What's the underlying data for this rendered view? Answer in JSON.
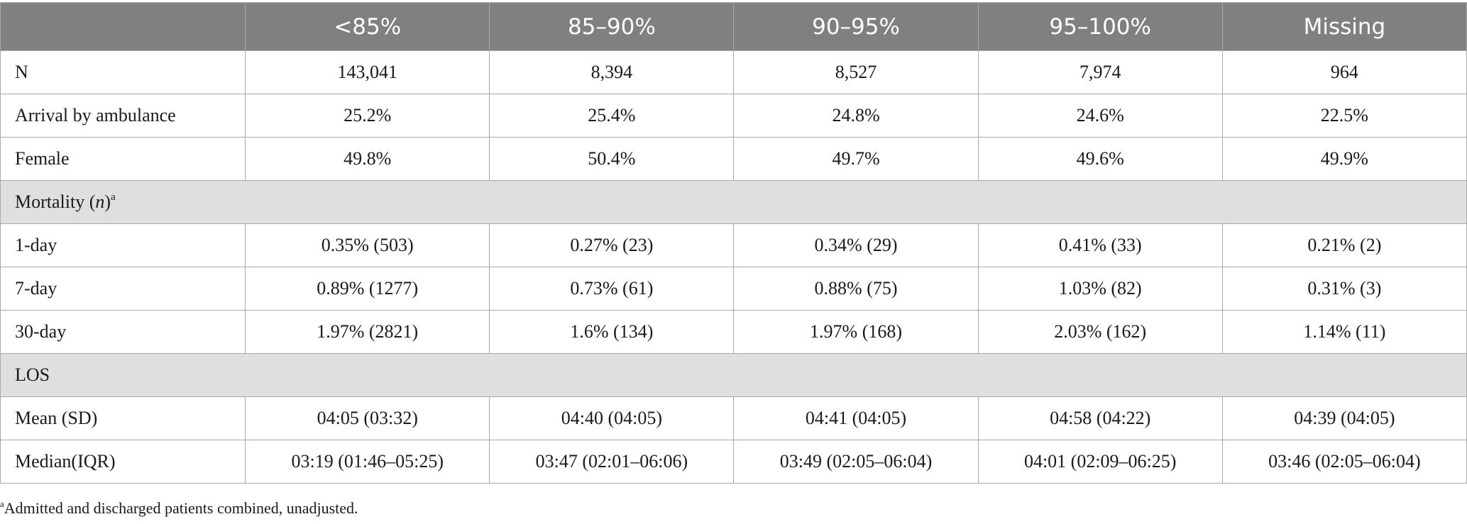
{
  "table": {
    "headers": [
      "",
      "<85%",
      "85–90%",
      "90–95%",
      "95–100%",
      "Missing"
    ],
    "rows_top": [
      {
        "label": "N",
        "values": [
          "143,041",
          "8,394",
          "8,527",
          "7,974",
          "964"
        ]
      },
      {
        "label": "Arrival by ambulance",
        "values": [
          "25.2%",
          "25.4%",
          "24.8%",
          "24.6%",
          "22.5%"
        ]
      },
      {
        "label": "Female",
        "values": [
          "49.8%",
          "50.4%",
          "49.7%",
          "49.6%",
          "49.9%"
        ]
      }
    ],
    "section_mortality": {
      "label_prefix": "Mortality (",
      "label_n": "n",
      "label_suffix": ")",
      "sup": "a"
    },
    "rows_mortality": [
      {
        "label": "1-day",
        "values": [
          "0.35% (503)",
          "0.27% (23)",
          "0.34% (29)",
          "0.41% (33)",
          "0.21% (2)"
        ]
      },
      {
        "label": "7-day",
        "values": [
          "0.89% (1277)",
          "0.73% (61)",
          "0.88% (75)",
          "1.03% (82)",
          "0.31% (3)"
        ]
      },
      {
        "label": "30-day",
        "values": [
          "1.97% (2821)",
          "1.6% (134)",
          "1.97% (168)",
          "2.03% (162)",
          "1.14% (11)"
        ]
      }
    ],
    "section_los": {
      "label": "LOS"
    },
    "rows_los": [
      {
        "label": "Mean (SD)",
        "values": [
          "04:05 (03:32)",
          "04:40 (04:05)",
          "04:41 (04:05)",
          "04:58 (04:22)",
          "04:39 (04:05)"
        ]
      },
      {
        "label": "Median(IQR)",
        "values": [
          "03:19 (01:46–05:25)",
          "03:47 (02:01–06:06)",
          "03:49 (02:05–06:04)",
          "04:01 (02:09–06:25)",
          "03:46 (02:05–06:04)"
        ]
      }
    ]
  },
  "footnote": {
    "sup": "a",
    "text": "Admitted and discharged patients combined, unadjusted."
  }
}
